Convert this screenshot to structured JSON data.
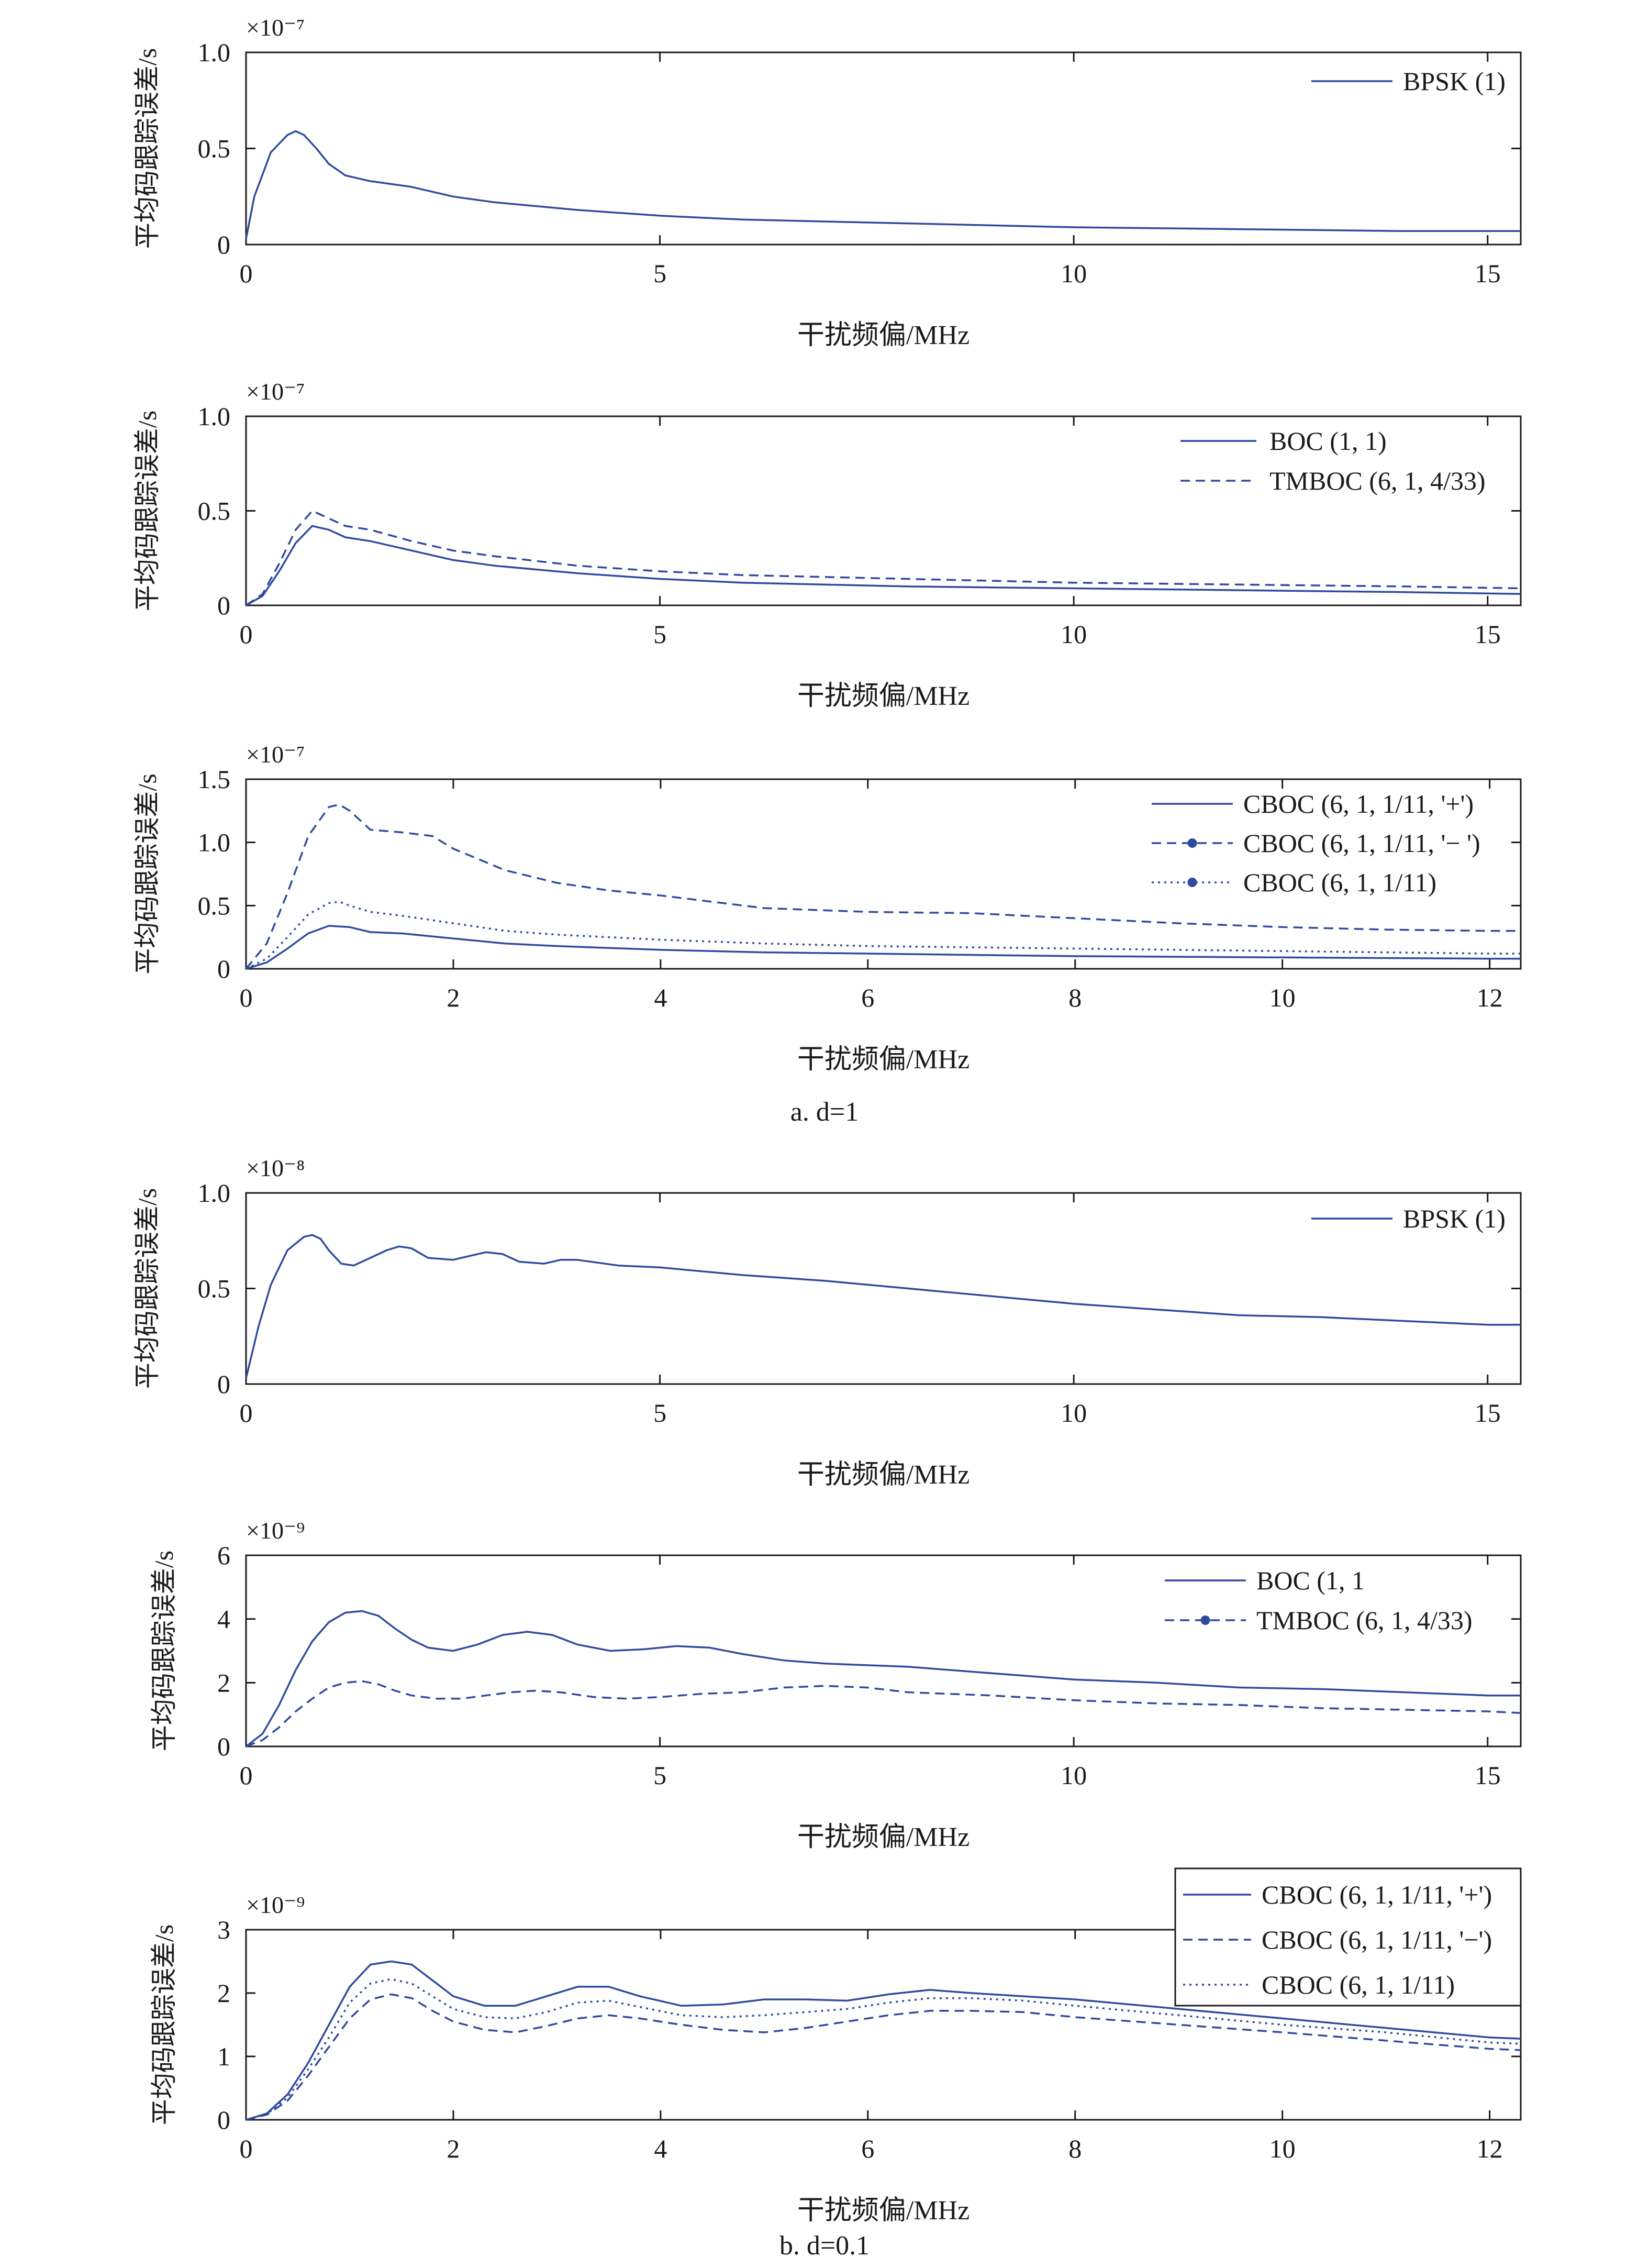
{
  "captions": [
    "a. d=1",
    "b. d=0.1"
  ],
  "colors": {
    "series": "#2f4a9e",
    "axis": "#1a1a1a",
    "background": "#ffffff"
  },
  "chart_data": [
    {
      "type": "line",
      "group": "a",
      "ylabel": "平均码跟踪误差/s",
      "xlabel": "干扰频偏/MHz",
      "exponent": "×10⁻⁷",
      "xlim": [
        0,
        15.4
      ],
      "ylim": [
        0,
        1.0
      ],
      "xticks": [
        0,
        5,
        10,
        15
      ],
      "yticks": [
        0,
        0.5,
        1.0
      ],
      "ytick_labels": [
        "0",
        "0.5",
        "1.0"
      ],
      "legend_position": "top-right",
      "series": [
        {
          "name": "BPSK (1)",
          "style": "solid",
          "x": [
            0,
            0.1,
            0.3,
            0.5,
            0.6,
            0.7,
            0.85,
            1.0,
            1.2,
            1.5,
            2,
            2.5,
            3,
            4,
            5,
            6,
            7,
            8,
            10,
            12,
            14,
            15.4
          ],
          "y": [
            0.03,
            0.25,
            0.48,
            0.57,
            0.59,
            0.57,
            0.5,
            0.42,
            0.36,
            0.33,
            0.3,
            0.25,
            0.22,
            0.18,
            0.15,
            0.13,
            0.12,
            0.11,
            0.09,
            0.08,
            0.07,
            0.07
          ]
        }
      ]
    },
    {
      "type": "line",
      "group": "a",
      "ylabel": "平均码跟踪误差/s",
      "xlabel": "干扰频偏/MHz",
      "exponent": "×10⁻⁷",
      "xlim": [
        0,
        15.4
      ],
      "ylim": [
        0,
        1.0
      ],
      "xticks": [
        0,
        5,
        10,
        15
      ],
      "yticks": [
        0,
        0.5,
        1.0
      ],
      "ytick_labels": [
        "0",
        "0.5",
        "1.0"
      ],
      "legend_position": "top-right",
      "series": [
        {
          "name": "BOC (1, 1)",
          "style": "solid",
          "x": [
            0,
            0.2,
            0.4,
            0.6,
            0.8,
            1.0,
            1.2,
            1.5,
            2,
            2.5,
            3,
            4,
            5,
            6,
            8,
            10,
            12,
            14,
            15.4
          ],
          "y": [
            0,
            0.05,
            0.18,
            0.33,
            0.42,
            0.4,
            0.36,
            0.34,
            0.29,
            0.24,
            0.21,
            0.17,
            0.14,
            0.12,
            0.1,
            0.09,
            0.08,
            0.07,
            0.06
          ]
        },
        {
          "name": "TMBOC (6, 1, 4/33)",
          "style": "dashed",
          "x": [
            0,
            0.2,
            0.4,
            0.6,
            0.8,
            1.0,
            1.2,
            1.5,
            2,
            2.5,
            3,
            4,
            5,
            6,
            8,
            10,
            12,
            14,
            15.4
          ],
          "y": [
            0,
            0.06,
            0.22,
            0.4,
            0.5,
            0.46,
            0.42,
            0.4,
            0.34,
            0.29,
            0.26,
            0.21,
            0.18,
            0.16,
            0.14,
            0.12,
            0.11,
            0.1,
            0.09
          ]
        }
      ]
    },
    {
      "type": "line",
      "group": "a",
      "ylabel": "平均码跟踪误差/s",
      "xlabel": "干扰频偏/MHz",
      "exponent": "×10⁻⁷",
      "xlim": [
        0,
        12.3
      ],
      "ylim": [
        0,
        1.5
      ],
      "xticks": [
        0,
        2,
        4,
        6,
        8,
        10,
        12
      ],
      "yticks": [
        0,
        0.5,
        1.0,
        1.5
      ],
      "ytick_labels": [
        "0",
        "0.5",
        "1.0",
        "1.5"
      ],
      "legend_position": "top-right",
      "series": [
        {
          "name": "CBOC (6, 1, 1/11, '+')",
          "style": "solid",
          "marker": false,
          "x": [
            0,
            0.2,
            0.4,
            0.6,
            0.8,
            1.0,
            1.2,
            1.5,
            2,
            2.5,
            3,
            4,
            5,
            6,
            7,
            8,
            10,
            12,
            12.3
          ],
          "y": [
            0,
            0.05,
            0.16,
            0.28,
            0.34,
            0.33,
            0.29,
            0.28,
            0.24,
            0.2,
            0.18,
            0.15,
            0.13,
            0.12,
            0.11,
            0.1,
            0.09,
            0.08,
            0.08
          ]
        },
        {
          "name": "CBOC (6, 1, 1/11, '− ')",
          "style": "dashed",
          "marker": true,
          "x": [
            0,
            0.2,
            0.4,
            0.6,
            0.8,
            0.9,
            1.0,
            1.2,
            1.5,
            1.8,
            2,
            2.5,
            3,
            3.5,
            4,
            5,
            6,
            7,
            8,
            9,
            10,
            11,
            12,
            12.3
          ],
          "y": [
            0,
            0.2,
            0.6,
            1.05,
            1.28,
            1.3,
            1.25,
            1.1,
            1.08,
            1.05,
            0.95,
            0.78,
            0.68,
            0.62,
            0.58,
            0.48,
            0.45,
            0.44,
            0.4,
            0.36,
            0.33,
            0.31,
            0.3,
            0.3
          ]
        },
        {
          "name": "CBOC (6, 1, 1/11)",
          "style": "dotted",
          "marker": true,
          "x": [
            0,
            0.2,
            0.4,
            0.6,
            0.8,
            0.9,
            1.0,
            1.2,
            1.5,
            2,
            2.5,
            3,
            4,
            5,
            6,
            7,
            8,
            10,
            12,
            12.3
          ],
          "y": [
            0,
            0.08,
            0.25,
            0.43,
            0.52,
            0.53,
            0.5,
            0.45,
            0.42,
            0.36,
            0.3,
            0.27,
            0.23,
            0.2,
            0.18,
            0.17,
            0.16,
            0.14,
            0.12,
            0.12
          ]
        }
      ]
    },
    {
      "type": "line",
      "group": "b",
      "ylabel": "平均码跟踪误差/s",
      "xlabel": "干扰频偏/MHz",
      "exponent": "×10⁻⁸",
      "xlim": [
        0,
        15.4
      ],
      "ylim": [
        0,
        1.0
      ],
      "xticks": [
        0,
        5,
        10,
        15
      ],
      "yticks": [
        0,
        0.5,
        1.0
      ],
      "ytick_labels": [
        "0",
        "0.5",
        "1.0"
      ],
      "legend_position": "top-right",
      "series": [
        {
          "name": "BPSK (1)",
          "style": "solid",
          "x": [
            0,
            0.15,
            0.3,
            0.5,
            0.7,
            0.8,
            0.9,
            1.0,
            1.15,
            1.3,
            1.5,
            1.7,
            1.85,
            2.0,
            2.2,
            2.5,
            2.7,
            2.9,
            3.1,
            3.3,
            3.6,
            3.8,
            4.0,
            4.5,
            5,
            6,
            7,
            8,
            9,
            10,
            11,
            12,
            13,
            14,
            15,
            15.4
          ],
          "y": [
            0.03,
            0.3,
            0.52,
            0.7,
            0.77,
            0.78,
            0.76,
            0.7,
            0.63,
            0.62,
            0.66,
            0.7,
            0.72,
            0.71,
            0.66,
            0.65,
            0.67,
            0.69,
            0.68,
            0.64,
            0.63,
            0.65,
            0.65,
            0.62,
            0.61,
            0.57,
            0.54,
            0.5,
            0.46,
            0.42,
            0.39,
            0.36,
            0.35,
            0.33,
            0.31,
            0.31
          ]
        }
      ]
    },
    {
      "type": "line",
      "group": "b",
      "ylabel": "平均码跟踪误差/s",
      "xlabel": "干扰频偏/MHz",
      "exponent": "×10⁻⁹",
      "xlim": [
        0,
        15.4
      ],
      "ylim": [
        0,
        6
      ],
      "xticks": [
        0,
        5,
        10,
        15
      ],
      "yticks": [
        0,
        2,
        4,
        6
      ],
      "ytick_labels": [
        "0",
        "2",
        "4",
        "6"
      ],
      "legend_position": "top-right",
      "series": [
        {
          "name": "BOC (1, 1",
          "style": "solid",
          "marker": false,
          "x": [
            0,
            0.2,
            0.4,
            0.6,
            0.8,
            1.0,
            1.2,
            1.4,
            1.6,
            1.8,
            2.0,
            2.2,
            2.5,
            2.8,
            3.1,
            3.4,
            3.7,
            4.0,
            4.4,
            4.8,
            5.2,
            5.6,
            6,
            6.5,
            7,
            8,
            9,
            10,
            11,
            12,
            13,
            14,
            15,
            15.4
          ],
          "y": [
            0,
            0.4,
            1.3,
            2.4,
            3.3,
            3.9,
            4.2,
            4.25,
            4.1,
            3.7,
            3.35,
            3.1,
            3.0,
            3.2,
            3.5,
            3.6,
            3.5,
            3.2,
            3.0,
            3.05,
            3.15,
            3.1,
            2.9,
            2.7,
            2.6,
            2.5,
            2.3,
            2.1,
            2.0,
            1.85,
            1.8,
            1.7,
            1.6,
            1.6
          ]
        },
        {
          "name": "TMBOC (6, 1, 4/33)",
          "style": "dashed",
          "marker": true,
          "x": [
            0,
            0.2,
            0.4,
            0.6,
            0.8,
            1.0,
            1.2,
            1.4,
            1.6,
            1.8,
            2.0,
            2.3,
            2.6,
            2.9,
            3.2,
            3.5,
            3.8,
            4.2,
            4.6,
            5,
            5.5,
            6,
            6.5,
            7,
            7.5,
            8,
            9,
            10,
            11,
            12,
            13,
            14,
            15,
            15.4
          ],
          "y": [
            0,
            0.2,
            0.6,
            1.1,
            1.5,
            1.85,
            2.0,
            2.05,
            1.95,
            1.75,
            1.6,
            1.5,
            1.5,
            1.6,
            1.7,
            1.75,
            1.7,
            1.55,
            1.5,
            1.55,
            1.65,
            1.7,
            1.85,
            1.9,
            1.85,
            1.7,
            1.6,
            1.45,
            1.35,
            1.3,
            1.2,
            1.15,
            1.1,
            1.05
          ]
        }
      ]
    },
    {
      "type": "line",
      "group": "b",
      "ylabel": "平均码跟踪误差/s",
      "xlabel": "干扰频偏/MHz",
      "exponent": "×10⁻⁹",
      "xlim": [
        0,
        12.3
      ],
      "ylim": [
        0,
        3
      ],
      "xticks": [
        0,
        2,
        4,
        6,
        8,
        10,
        12
      ],
      "yticks": [
        0,
        1,
        2,
        3
      ],
      "ytick_labels": [
        "0",
        "1",
        "2",
        "3"
      ],
      "legend_position": "top-right-boxed",
      "series": [
        {
          "name": "CBOC (6, 1, 1/11, '+')",
          "style": "solid",
          "x": [
            0,
            0.2,
            0.4,
            0.6,
            0.8,
            1.0,
            1.2,
            1.4,
            1.6,
            1.8,
            2.0,
            2.3,
            2.6,
            2.9,
            3.2,
            3.5,
            3.8,
            4.2,
            4.6,
            5.0,
            5.4,
            5.8,
            6.2,
            6.6,
            7.0,
            7.5,
            8,
            9,
            10,
            11,
            12,
            12.3
          ],
          "y": [
            0,
            0.1,
            0.4,
            0.9,
            1.5,
            2.1,
            2.45,
            2.5,
            2.45,
            2.2,
            1.95,
            1.8,
            1.8,
            1.95,
            2.1,
            2.1,
            1.95,
            1.8,
            1.82,
            1.9,
            1.9,
            1.88,
            1.98,
            2.05,
            2.0,
            1.95,
            1.9,
            1.75,
            1.6,
            1.45,
            1.3,
            1.28
          ]
        },
        {
          "name": "CBOC (6, 1, 1/11, '−')",
          "style": "dashed",
          "x": [
            0,
            0.2,
            0.4,
            0.6,
            0.8,
            1.0,
            1.2,
            1.4,
            1.6,
            1.8,
            2.0,
            2.3,
            2.6,
            2.9,
            3.2,
            3.5,
            3.8,
            4.2,
            4.6,
            5.0,
            5.4,
            5.8,
            6.2,
            6.6,
            7.0,
            7.5,
            8,
            9,
            10,
            11,
            12,
            12.3
          ],
          "y": [
            0,
            0.08,
            0.3,
            0.7,
            1.15,
            1.6,
            1.9,
            1.98,
            1.92,
            1.72,
            1.55,
            1.42,
            1.38,
            1.48,
            1.6,
            1.65,
            1.6,
            1.5,
            1.42,
            1.38,
            1.45,
            1.55,
            1.65,
            1.72,
            1.72,
            1.7,
            1.62,
            1.5,
            1.38,
            1.25,
            1.12,
            1.1
          ]
        },
        {
          "name": "CBOC (6, 1, 1/11)",
          "style": "dotted",
          "x": [
            0,
            0.2,
            0.4,
            0.6,
            0.8,
            1.0,
            1.2,
            1.4,
            1.6,
            1.8,
            2.0,
            2.3,
            2.6,
            2.9,
            3.2,
            3.5,
            3.8,
            4.2,
            4.6,
            5.0,
            5.4,
            5.8,
            6.2,
            6.6,
            7.0,
            7.5,
            8,
            9,
            10,
            11,
            12,
            12.3
          ],
          "y": [
            0,
            0.09,
            0.35,
            0.8,
            1.3,
            1.85,
            2.15,
            2.22,
            2.15,
            1.95,
            1.75,
            1.62,
            1.6,
            1.7,
            1.85,
            1.88,
            1.78,
            1.65,
            1.62,
            1.65,
            1.7,
            1.75,
            1.85,
            1.92,
            1.92,
            1.88,
            1.8,
            1.65,
            1.5,
            1.38,
            1.22,
            1.2
          ]
        }
      ]
    }
  ]
}
